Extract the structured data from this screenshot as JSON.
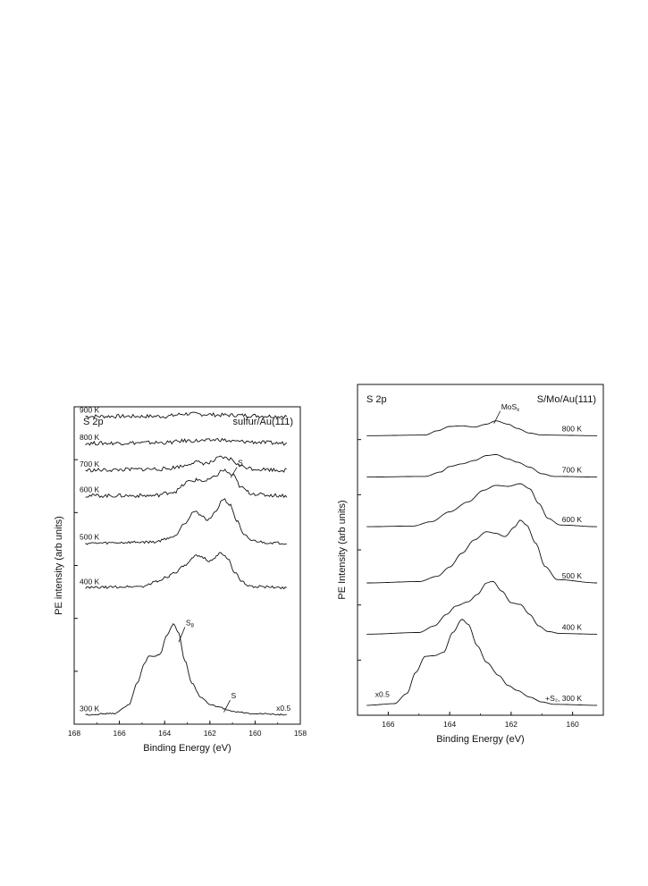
{
  "chart_data": [
    {
      "type": "line",
      "panel_title": "S 2p",
      "sample_label": "sulfur/Au(111)",
      "xlabel": "Binding Energy (eV)",
      "ylabel": "PE intensity (arb units)",
      "xlim": [
        168,
        158
      ],
      "x_ticks": [
        "168",
        "166",
        "164",
        "162",
        "160",
        "158"
      ],
      "grid": false,
      "series": [
        {
          "name": "900 K",
          "offset": 0.97,
          "noise": 0.006,
          "points": [
            [
              167.5,
              0
            ],
            [
              164,
              0
            ],
            [
              163,
              0.008
            ],
            [
              162.2,
              0.006
            ],
            [
              161.5,
              0.004
            ],
            [
              158.6,
              0
            ]
          ]
        },
        {
          "name": "800 K",
          "offset": 0.885,
          "noise": 0.006,
          "points": [
            [
              167.5,
              0
            ],
            [
              164,
              0.002
            ],
            [
              163,
              0.008
            ],
            [
              162.2,
              0.008
            ],
            [
              161.6,
              0.012
            ],
            [
              161,
              0.006
            ],
            [
              158.6,
              0
            ]
          ]
        },
        {
          "name": "700 K",
          "offset": 0.8,
          "noise": 0.006,
          "points": [
            [
              167.5,
              0
            ],
            [
              164,
              0.004
            ],
            [
              163.3,
              0.012
            ],
            [
              162.7,
              0.025
            ],
            [
              162.1,
              0.022
            ],
            [
              161.5,
              0.04
            ],
            [
              161.1,
              0.035
            ],
            [
              160.6,
              0.012
            ],
            [
              160,
              0.004
            ],
            [
              158.6,
              0
            ]
          ]
        },
        {
          "name": "600 K",
          "offset": 0.72,
          "noise": 0.006,
          "points": [
            [
              167.5,
              0
            ],
            [
              164.5,
              0
            ],
            [
              163.6,
              0.012
            ],
            [
              162.9,
              0.045
            ],
            [
              162.5,
              0.05
            ],
            [
              162.2,
              0.045
            ],
            [
              161.9,
              0.055
            ],
            [
              161.4,
              0.08
            ],
            [
              161,
              0.065
            ],
            [
              160.6,
              0.025
            ],
            [
              160.2,
              0.008
            ],
            [
              159.6,
              0.002
            ],
            [
              158.6,
              0
            ]
          ]
        },
        {
          "name": "500 K",
          "offset": 0.57,
          "noise": 0.004,
          "points": [
            [
              167.5,
              0
            ],
            [
              164.5,
              0.004
            ],
            [
              163.6,
              0.02
            ],
            [
              163.1,
              0.065
            ],
            [
              162.7,
              0.1
            ],
            [
              162.4,
              0.09
            ],
            [
              162.1,
              0.072
            ],
            [
              161.8,
              0.095
            ],
            [
              161.4,
              0.14
            ],
            [
              161.1,
              0.12
            ],
            [
              160.8,
              0.07
            ],
            [
              160.5,
              0.025
            ],
            [
              160.1,
              0.008
            ],
            [
              159.5,
              0.002
            ],
            [
              158.6,
              0
            ]
          ]
        },
        {
          "name": "400 K",
          "offset": 0.43,
          "noise": 0.004,
          "points": [
            [
              167.5,
              0
            ],
            [
              165,
              0.004
            ],
            [
              164.3,
              0.02
            ],
            [
              163.9,
              0.035
            ],
            [
              163.5,
              0.05
            ],
            [
              163.1,
              0.07
            ],
            [
              162.6,
              0.1
            ],
            [
              162.3,
              0.096
            ],
            [
              162,
              0.084
            ],
            [
              161.8,
              0.094
            ],
            [
              161.5,
              0.11
            ],
            [
              161.2,
              0.09
            ],
            [
              160.9,
              0.05
            ],
            [
              160.6,
              0.018
            ],
            [
              160.2,
              0.004
            ],
            [
              158.6,
              0
            ]
          ]
        },
        {
          "name": "300 K",
          "offset": 0.03,
          "noise": 0.002,
          "points": [
            [
              167.5,
              0
            ],
            [
              166.2,
              0.004
            ],
            [
              165.6,
              0.03
            ],
            [
              165.2,
              0.1
            ],
            [
              164.9,
              0.16
            ],
            [
              164.7,
              0.185
            ],
            [
              164.4,
              0.185
            ],
            [
              164.2,
              0.19
            ],
            [
              163.9,
              0.25
            ],
            [
              163.6,
              0.285
            ],
            [
              163.4,
              0.26
            ],
            [
              163.1,
              0.17
            ],
            [
              162.8,
              0.1
            ],
            [
              162.4,
              0.055
            ],
            [
              162,
              0.032
            ],
            [
              161.6,
              0.024
            ],
            [
              161.2,
              0.015
            ],
            [
              160.8,
              0.008
            ],
            [
              160.2,
              0.004
            ],
            [
              158.6,
              0
            ]
          ]
        }
      ],
      "annotations": [
        {
          "text": "S",
          "sub": "",
          "series": "600 K",
          "x": 161.0,
          "dy": 0.03
        },
        {
          "text": "S",
          "sub": "8",
          "series": "300 K",
          "x": 163.3,
          "dy": 0.045
        },
        {
          "text": "S",
          "sub": "",
          "series": "300 K",
          "x": 161.3,
          "dy": 0.035
        },
        {
          "text": "x0.5",
          "sub": "",
          "series": "300 K",
          "x": 159.3,
          "dy": 0.01
        }
      ]
    },
    {
      "type": "line",
      "panel_title": "S 2p",
      "sample_label": "S/Mo/Au(111)",
      "xlabel": "Binding Energy (eV)",
      "ylabel": "PE Intensity (arb units)",
      "xlim": [
        167,
        159
      ],
      "x_ticks": [
        "166",
        "164",
        "162",
        "160"
      ],
      "grid": false,
      "series": [
        {
          "name": "800 K",
          "offset": 0.845,
          "noise": 0,
          "points": [
            [
              166.7,
              0
            ],
            [
              164.8,
              0.002
            ],
            [
              164.4,
              0.015
            ],
            [
              164,
              0.028
            ],
            [
              163.6,
              0.03
            ],
            [
              163.2,
              0.026
            ],
            [
              162.8,
              0.035
            ],
            [
              162.5,
              0.045
            ],
            [
              162.1,
              0.035
            ],
            [
              161.8,
              0.022
            ],
            [
              161.4,
              0.008
            ],
            [
              161,
              0.002
            ],
            [
              159.2,
              0
            ]
          ]
        },
        {
          "name": "700 K",
          "offset": 0.72,
          "noise": 0,
          "points": [
            [
              166.7,
              0
            ],
            [
              164.8,
              0.002
            ],
            [
              164.3,
              0.015
            ],
            [
              164,
              0.032
            ],
            [
              163.6,
              0.04
            ],
            [
              163.2,
              0.05
            ],
            [
              162.8,
              0.065
            ],
            [
              162.5,
              0.068
            ],
            [
              162.1,
              0.055
            ],
            [
              161.8,
              0.045
            ],
            [
              161.4,
              0.03
            ],
            [
              161,
              0.01
            ],
            [
              160.6,
              0.002
            ],
            [
              159.2,
              0
            ]
          ]
        },
        {
          "name": "600 K",
          "offset": 0.57,
          "noise": 0,
          "points": [
            [
              166.7,
              0
            ],
            [
              165.2,
              0.002
            ],
            [
              164.6,
              0.015
            ],
            [
              164,
              0.045
            ],
            [
              163.4,
              0.075
            ],
            [
              162.9,
              0.11
            ],
            [
              162.5,
              0.125
            ],
            [
              162.1,
              0.122
            ],
            [
              161.7,
              0.13
            ],
            [
              161.4,
              0.115
            ],
            [
              161.1,
              0.07
            ],
            [
              160.8,
              0.025
            ],
            [
              160.4,
              0.005
            ],
            [
              159.2,
              0
            ]
          ]
        },
        {
          "name": "500 K",
          "offset": 0.4,
          "noise": 0,
          "points": [
            [
              166.7,
              0
            ],
            [
              165,
              0.004
            ],
            [
              164.4,
              0.02
            ],
            [
              164,
              0.048
            ],
            [
              163.6,
              0.09
            ],
            [
              163.2,
              0.13
            ],
            [
              162.8,
              0.155
            ],
            [
              162.5,
              0.15
            ],
            [
              162.2,
              0.14
            ],
            [
              161.9,
              0.168
            ],
            [
              161.7,
              0.19
            ],
            [
              161.5,
              0.175
            ],
            [
              161.2,
              0.12
            ],
            [
              160.9,
              0.05
            ],
            [
              160.5,
              0.01
            ],
            [
              159.2,
              0
            ]
          ]
        },
        {
          "name": "400 K",
          "offset": 0.245,
          "noise": 0,
          "points": [
            [
              166.7,
              0
            ],
            [
              165,
              0.005
            ],
            [
              164.5,
              0.025
            ],
            [
              164.1,
              0.06
            ],
            [
              163.8,
              0.085
            ],
            [
              163.4,
              0.098
            ],
            [
              163.1,
              0.12
            ],
            [
              162.8,
              0.155
            ],
            [
              162.6,
              0.16
            ],
            [
              162.3,
              0.13
            ],
            [
              162,
              0.095
            ],
            [
              161.7,
              0.09
            ],
            [
              161.4,
              0.06
            ],
            [
              161.1,
              0.025
            ],
            [
              160.8,
              0.008
            ],
            [
              160.4,
              0.002
            ],
            [
              159.2,
              0
            ]
          ]
        },
        {
          "name": "+S₂, 300 K",
          "offset": 0.03,
          "noise": 0,
          "points": [
            [
              166.7,
              0
            ],
            [
              165.8,
              0.005
            ],
            [
              165.4,
              0.035
            ],
            [
              165.1,
              0.1
            ],
            [
              164.8,
              0.148
            ],
            [
              164.5,
              0.15
            ],
            [
              164.2,
              0.16
            ],
            [
              163.9,
              0.22
            ],
            [
              163.6,
              0.26
            ],
            [
              163.4,
              0.245
            ],
            [
              163.1,
              0.18
            ],
            [
              162.8,
              0.13
            ],
            [
              162.4,
              0.09
            ],
            [
              162.1,
              0.06
            ],
            [
              161.8,
              0.045
            ],
            [
              161.4,
              0.025
            ],
            [
              161,
              0.01
            ],
            [
              160.6,
              0.003
            ],
            [
              159.2,
              0
            ]
          ]
        }
      ],
      "annotations": [
        {
          "text": "MoS",
          "sub": "x",
          "series": "800 K",
          "x": 162.5,
          "dy": 0.035
        },
        {
          "text": "x0.5",
          "sub": "",
          "series": "+S₂, 300 K",
          "x": 166.6,
          "dy": 0.025
        }
      ]
    }
  ]
}
